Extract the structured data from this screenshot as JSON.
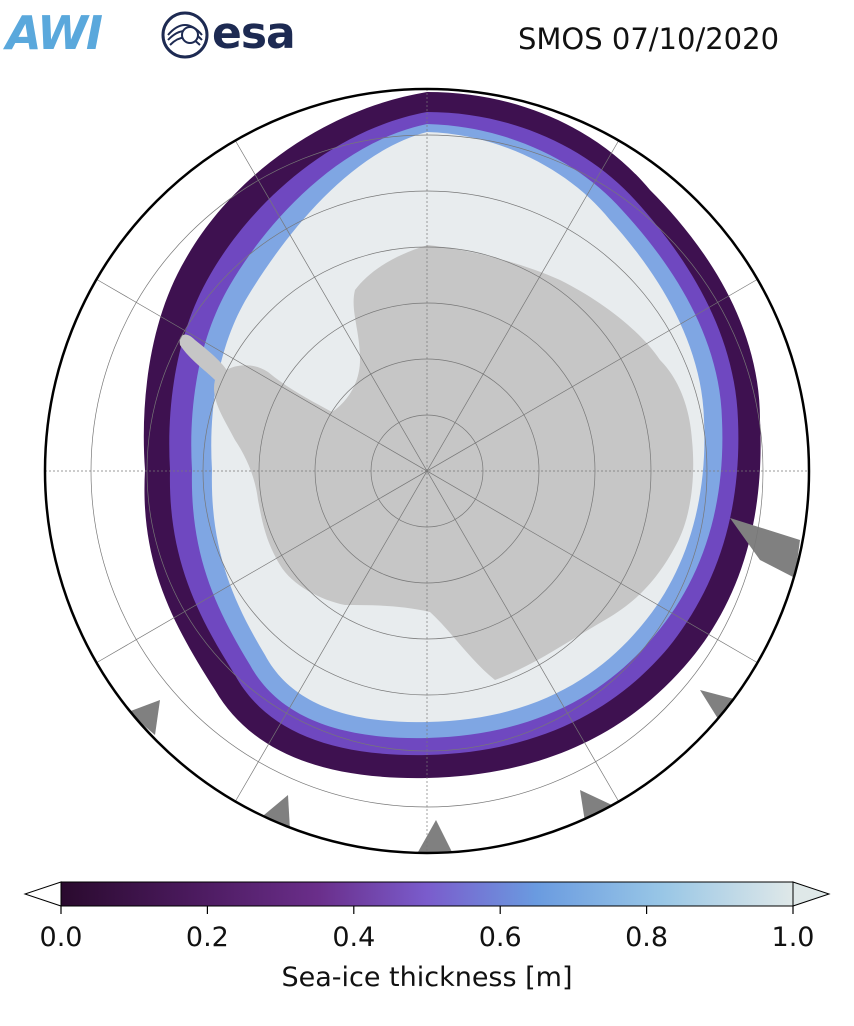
{
  "header": {
    "logo_awi_text": "AWI",
    "logo_esa_text": "esa",
    "title": "SMOS 07/10/2020"
  },
  "colorbar": {
    "label": "Sea-ice thickness [m]",
    "ticks": [
      "0.0",
      "0.2",
      "0.4",
      "0.6",
      "0.8",
      "1.0"
    ],
    "min": 0.0,
    "max": 1.0,
    "extend": "both",
    "colors": [
      "#2a0a2e",
      "#4b1a5e",
      "#6a2e8a",
      "#7a5ccc",
      "#6a9be0",
      "#98c6e6",
      "#dfe8e8"
    ]
  },
  "map": {
    "projection": "south-polar-stereographic",
    "land_color": "#c6c6c6",
    "land_dark_color": "#808080",
    "ocean_color": "#ffffff",
    "ice_center_color": "#e6e6e6"
  }
}
